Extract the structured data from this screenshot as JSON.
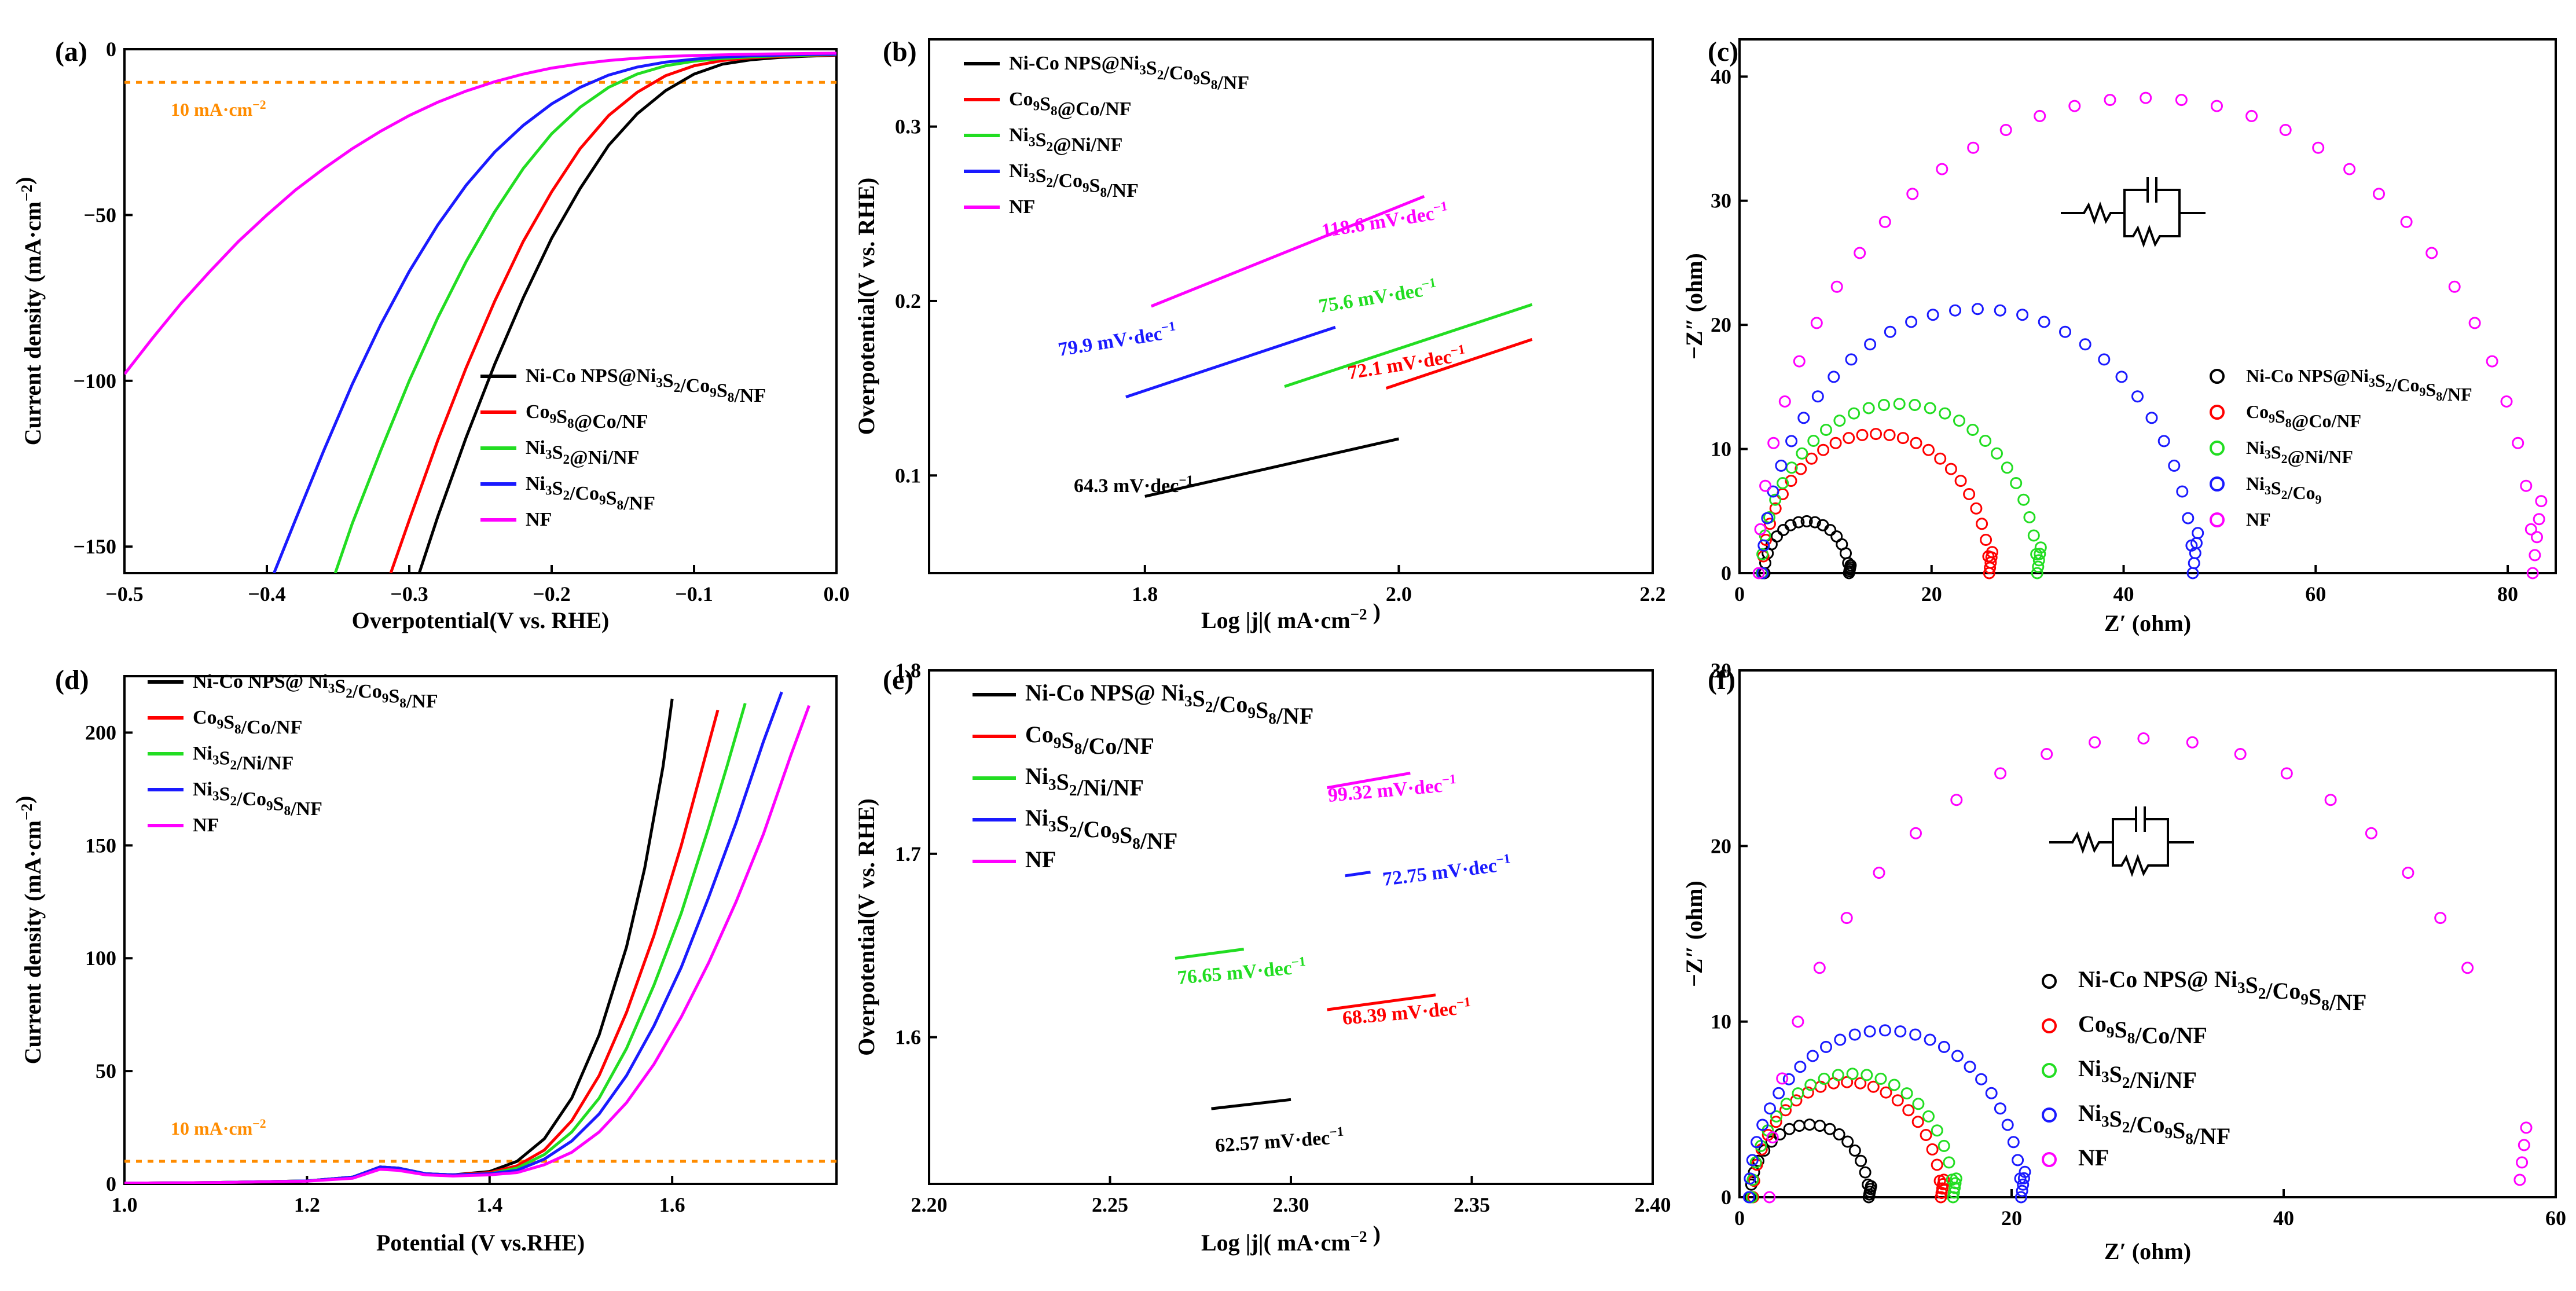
{
  "figure": {
    "description_visible": false
  },
  "colors": {
    "black": "#000000",
    "red": "#ff0000",
    "green": "#22dd22",
    "blue": "#1a1aff",
    "magenta": "#ff00ff",
    "orange": "#ff8c00"
  },
  "chart_data": [
    {
      "id": "a",
      "panel_label": "(a)",
      "type": "line",
      "xlabel": "Overpotential(V vs. RHE)",
      "ylabel": "Current density (mA·cm⁻²)",
      "xlim": [
        -0.5,
        0.0
      ],
      "ylim": [
        -158,
        0
      ],
      "xticks": [
        -0.5,
        -0.4,
        -0.3,
        -0.2,
        -0.1,
        0.0
      ],
      "xtick_labels": [
        "−0.5",
        "−0.4",
        "−0.3",
        "−0.2",
        "−0.1",
        "0.0"
      ],
      "yticks": [
        0,
        -50,
        -100,
        -150
      ],
      "ytick_labels": [
        "0",
        "−50",
        "−100",
        "−150"
      ],
      "reference_line": {
        "y": -10,
        "label": "10 mA·cm⁻²"
      },
      "legend": [
        "Ni-Co NPS@Ni₃S₂/Co₉S₈/NF",
        "Co₉S₈@Co/NF",
        "Ni₃S₂@Ni/NF",
        "Ni₃S₂/Co₉S₈/NF",
        "NF"
      ],
      "series": [
        {
          "name": "Ni-Co NPS@Ni3S2/Co9S8/NF",
          "color": "black",
          "x": [
            -0.293,
            -0.28,
            -0.26,
            -0.24,
            -0.22,
            -0.2,
            -0.18,
            -0.16,
            -0.14,
            -0.12,
            -0.1,
            -0.08,
            -0.06,
            -0.04,
            -0.02,
            0.0
          ],
          "y": [
            -158,
            -141,
            -117,
            -95,
            -75,
            -57,
            -42,
            -29,
            -19.5,
            -12.5,
            -7.5,
            -4.5,
            -3.2,
            -2.5,
            -2.1,
            -1.8
          ]
        },
        {
          "name": "Co9S8@Co/NF",
          "color": "red",
          "x": [
            -0.313,
            -0.3,
            -0.28,
            -0.26,
            -0.24,
            -0.22,
            -0.2,
            -0.18,
            -0.16,
            -0.14,
            -0.12,
            -0.1,
            -0.08,
            -0.06,
            -0.04,
            -0.02,
            0.0
          ],
          "y": [
            -158,
            -142,
            -118,
            -96,
            -76,
            -58,
            -43,
            -30,
            -20,
            -13,
            -8,
            -5,
            -3.4,
            -2.6,
            -2.2,
            -1.9,
            -1.7
          ]
        },
        {
          "name": "Ni3S2@Ni/NF",
          "color": "green",
          "x": [
            -0.352,
            -0.34,
            -0.32,
            -0.3,
            -0.28,
            -0.26,
            -0.24,
            -0.22,
            -0.2,
            -0.18,
            -0.16,
            -0.14,
            -0.12,
            -0.1,
            -0.08,
            -0.06,
            -0.04,
            -0.02,
            0.0
          ],
          "y": [
            -158,
            -143,
            -121,
            -100,
            -81,
            -64,
            -49,
            -36,
            -25.5,
            -17.5,
            -11.5,
            -7.5,
            -5,
            -3.6,
            -2.8,
            -2.3,
            -2.0,
            -1.8,
            -1.6
          ]
        },
        {
          "name": "Ni3S2/Co9S8/NF",
          "color": "blue",
          "x": [
            -0.395,
            -0.38,
            -0.36,
            -0.34,
            -0.32,
            -0.3,
            -0.28,
            -0.26,
            -0.24,
            -0.22,
            -0.2,
            -0.18,
            -0.16,
            -0.14,
            -0.12,
            -0.1,
            -0.08,
            -0.06,
            -0.04,
            -0.02,
            0.0
          ],
          "y": [
            -158,
            -142,
            -121,
            -101,
            -83,
            -67,
            -53,
            -41,
            -31,
            -23,
            -16.5,
            -11.5,
            -7.8,
            -5.4,
            -3.9,
            -3.0,
            -2.4,
            -2.0,
            -1.8,
            -1.6,
            -1.5
          ]
        },
        {
          "name": "NF",
          "color": "magenta",
          "x": [
            -0.5,
            -0.48,
            -0.46,
            -0.44,
            -0.42,
            -0.4,
            -0.38,
            -0.36,
            -0.34,
            -0.32,
            -0.3,
            -0.28,
            -0.26,
            -0.24,
            -0.22,
            -0.2,
            -0.18,
            -0.16,
            -0.14,
            -0.12,
            -0.1,
            -0.08,
            -0.06,
            -0.04,
            -0.02,
            0.0
          ],
          "y": [
            -98,
            -87,
            -76.5,
            -67,
            -58,
            -50,
            -42.5,
            -36,
            -30,
            -24.7,
            -20,
            -16,
            -12.6,
            -9.8,
            -7.5,
            -5.7,
            -4.4,
            -3.4,
            -2.7,
            -2.2,
            -1.9,
            -1.7,
            -1.5,
            -1.4,
            -1.3,
            -1.2
          ]
        }
      ]
    },
    {
      "id": "b",
      "panel_label": "(b)",
      "type": "line",
      "xlabel": "Log |j|( mA·cm⁻² )",
      "ylabel": "Overpotential(V vs. RHE)",
      "xlim": [
        1.63,
        2.2
      ],
      "ylim": [
        0.044,
        0.35
      ],
      "xticks": [
        1.8,
        2.0,
        2.2
      ],
      "xtick_labels": [
        "1.8",
        "2.0",
        "2.2"
      ],
      "yticks": [
        0.1,
        0.2,
        0.3
      ],
      "ytick_labels": [
        "0.1",
        "0.2",
        "0.3"
      ],
      "legend": [
        "Ni-Co NPS@Ni₃S₂/Co₉S₈/NF",
        "Co₉S₈@Co/NF",
        "Ni₃S₂@Ni/NF",
        "Ni₃S₂/Co₉S₈/NF",
        "NF"
      ],
      "series": [
        {
          "name": "Ni-Co NPS@Ni3S2/Co9S8/NF",
          "color": "black",
          "x": [
            1.8,
            2.0
          ],
          "y": [
            0.088,
            0.121
          ],
          "tafel": "64.3 mV·dec⁻¹"
        },
        {
          "name": "Co9S8@Co/NF",
          "color": "red",
          "x": [
            1.99,
            2.105
          ],
          "y": [
            0.15,
            0.178
          ],
          "tafel": "72.1 mV·dec⁻¹"
        },
        {
          "name": "Ni3S2@Ni/NF",
          "color": "green",
          "x": [
            1.91,
            2.105
          ],
          "y": [
            0.151,
            0.198
          ],
          "tafel": "75.6 mV·dec⁻¹"
        },
        {
          "name": "Ni3S2/Co9S8/NF",
          "color": "blue",
          "x": [
            1.785,
            1.95
          ],
          "y": [
            0.145,
            0.185
          ],
          "tafel": "79.9 mV·dec⁻¹"
        },
        {
          "name": "NF",
          "color": "magenta",
          "x": [
            1.805,
            2.02
          ],
          "y": [
            0.197,
            0.26
          ],
          "tafel": "118.6 mV·dec⁻¹"
        }
      ]
    },
    {
      "id": "c",
      "panel_label": "(c)",
      "type": "scatter",
      "xlabel": "Z′ (ohm)",
      "ylabel": "−Z″ (ohm)",
      "xlim": [
        0,
        85
      ],
      "ylim": [
        0,
        43
      ],
      "xticks": [
        0,
        20,
        40,
        60,
        80
      ],
      "xtick_labels": [
        "0",
        "20",
        "40",
        "60",
        "80"
      ],
      "yticks": [
        0,
        10,
        20,
        30,
        40
      ],
      "ytick_labels": [
        "0",
        "10",
        "20",
        "30",
        "40"
      ],
      "legend": [
        "Ni-Co NPS@Ni₃S₂/Co₉S₈/NF",
        "Co₉S₈@Co/NF",
        "Ni₃S₂@Ni/NF",
        "Ni₃S₂/Co₉",
        "NF"
      ],
      "series": [
        {
          "name": "Ni-Co NPS@Ni3S2/Co9S8/NF",
          "color": "black",
          "rs": 2.6,
          "diameter": 8.8,
          "points": 16
        },
        {
          "name": "Co9S8@Co/NF",
          "color": "red",
          "rs": 2.4,
          "diameter": 23.6,
          "points": 26
        },
        {
          "name": "Ni3S2@Ni/NF",
          "color": "green",
          "rs": 2.3,
          "diameter": 28.7,
          "points": 28
        },
        {
          "name": "Ni3S2/Co9",
          "color": "blue",
          "rs": 2.4,
          "diameter": 44.8,
          "points": 30
        },
        {
          "name": "NF",
          "color": "magenta",
          "rs": 2.0,
          "diameter": 80.6,
          "points": 34
        }
      ]
    },
    {
      "id": "d",
      "panel_label": "(d)",
      "type": "line",
      "xlabel": "Potential (V vs.RHE)",
      "ylabel": "Current density (mA·cm⁻²)",
      "xlim": [
        1.0,
        1.78
      ],
      "ylim": [
        0,
        225
      ],
      "xticks": [
        1.0,
        1.2,
        1.4,
        1.6
      ],
      "xtick_labels": [
        "1.0",
        "1.2",
        "1.4",
        "1.6"
      ],
      "yticks": [
        0,
        50,
        100,
        150,
        200
      ],
      "ytick_labels": [
        "0",
        "50",
        "100",
        "150",
        "200"
      ],
      "reference_line": {
        "y": 10,
        "label": "10 mA·cm⁻²"
      },
      "legend": [
        "Ni-Co NPS@ Ni₃S₂/Co₉S₈/NF",
        "Co₉S₈/Co/NF",
        "Ni₃S₂/Ni/NF",
        "Ni₃S₂/Co₉S₈/NF",
        "NF"
      ],
      "series": [
        {
          "name": "Ni-Co NPS@ Ni3S2/Co9S8/NF",
          "color": "black",
          "x": [
            1.0,
            1.1,
            1.2,
            1.25,
            1.28,
            1.3,
            1.33,
            1.36,
            1.4,
            1.43,
            1.46,
            1.49,
            1.52,
            1.55,
            1.57,
            1.59,
            1.6
          ],
          "y": [
            0.3,
            0.6,
            1.3,
            3,
            7.5,
            7,
            4.5,
            4,
            5.5,
            10,
            20,
            38,
            66,
            105,
            140,
            185,
            215
          ]
        },
        {
          "name": "Co9S8/Co/NF",
          "color": "red",
          "x": [
            1.0,
            1.1,
            1.2,
            1.25,
            1.28,
            1.3,
            1.33,
            1.36,
            1.4,
            1.43,
            1.46,
            1.49,
            1.52,
            1.55,
            1.58,
            1.61,
            1.63,
            1.65
          ],
          "y": [
            0.3,
            0.6,
            1.3,
            3,
            7.5,
            7,
            4.5,
            4,
            5,
            8,
            15,
            28,
            48,
            76,
            110,
            150,
            180,
            210
          ]
        },
        {
          "name": "Ni3S2/Ni/NF",
          "color": "green",
          "x": [
            1.0,
            1.1,
            1.2,
            1.25,
            1.28,
            1.3,
            1.33,
            1.36,
            1.4,
            1.43,
            1.46,
            1.49,
            1.52,
            1.55,
            1.58,
            1.61,
            1.64,
            1.66,
            1.68
          ],
          "y": [
            0.3,
            0.6,
            1.3,
            3,
            7.5,
            7,
            4.5,
            4,
            4.5,
            7,
            13,
            23,
            38,
            60,
            88,
            120,
            158,
            185,
            213
          ]
        },
        {
          "name": "Ni3S2/Co9S8/NF",
          "color": "blue",
          "x": [
            1.0,
            1.1,
            1.2,
            1.25,
            1.28,
            1.3,
            1.33,
            1.36,
            1.4,
            1.43,
            1.46,
            1.49,
            1.52,
            1.55,
            1.58,
            1.61,
            1.64,
            1.67,
            1.7,
            1.72
          ],
          "y": [
            0.3,
            0.6,
            1.3,
            3,
            7.5,
            7,
            4.5,
            4,
            4.5,
            6,
            11,
            19,
            31,
            48,
            70,
            96,
            127,
            160,
            196,
            218
          ]
        },
        {
          "name": "NF",
          "color": "magenta",
          "x": [
            1.0,
            1.1,
            1.2,
            1.25,
            1.28,
            1.3,
            1.33,
            1.36,
            1.4,
            1.43,
            1.46,
            1.49,
            1.52,
            1.55,
            1.58,
            1.61,
            1.64,
            1.67,
            1.7,
            1.73,
            1.75
          ],
          "y": [
            0.3,
            0.6,
            1.2,
            2.5,
            6.5,
            6,
            4,
            3.5,
            4,
            5,
            8.5,
            14,
            23,
            36,
            53,
            74,
            98,
            125,
            155,
            190,
            212
          ]
        }
      ]
    },
    {
      "id": "e",
      "panel_label": "(e)",
      "type": "line",
      "xlabel": "Log |j|( mA·cm⁻² )",
      "ylabel": "Overpotential(V vs. RHE)",
      "xlim": [
        2.2,
        2.4
      ],
      "ylim": [
        1.52,
        1.8
      ],
      "xticks": [
        2.2,
        2.25,
        2.3,
        2.35,
        2.4
      ],
      "xtick_labels": [
        "2.20",
        "2.25",
        "2.30",
        "2.35",
        "2.40"
      ],
      "yticks": [
        1.6,
        1.7,
        1.8
      ],
      "ytick_labels": [
        "1.6",
        "1.7",
        "1.8"
      ],
      "legend": [
        "Ni-Co NPS@ Ni₃S₂/Co₉S₈/NF",
        "Co₉S₈/Co/NF",
        "Ni₃S₂/Ni/NF",
        "Ni₃S₂/Co₉S₈/NF",
        "NF"
      ],
      "series": [
        {
          "name": "Ni-Co NPS@ Ni3S2/Co9S8/NF",
          "color": "black",
          "x": [
            2.278,
            2.3
          ],
          "y": [
            1.561,
            1.566
          ],
          "tafel": "62.57 mV·dec⁻¹"
        },
        {
          "name": "Co9S8/Co/NF",
          "color": "red",
          "x": [
            2.31,
            2.34
          ],
          "y": [
            1.615,
            1.623
          ],
          "tafel": "68.39 mV·dec⁻¹"
        },
        {
          "name": "Ni3S2/Ni/NF",
          "color": "green",
          "x": [
            2.268,
            2.287
          ],
          "y": [
            1.643,
            1.648
          ],
          "tafel": "76.65 mV·dec⁻¹"
        },
        {
          "name": "Ni3S2/Co9S8/NF",
          "color": "blue",
          "x": [
            2.315,
            2.322
          ],
          "y": [
            1.688,
            1.69
          ],
          "tafel": "72.75 mV·dec⁻¹"
        },
        {
          "name": "NF",
          "color": "magenta",
          "x": [
            2.31,
            2.333
          ],
          "y": [
            1.736,
            1.744
          ],
          "tafel": "99.32 mV·dec⁻¹"
        }
      ]
    },
    {
      "id": "f",
      "panel_label": "(f)",
      "type": "scatter",
      "xlabel": "Z′ (ohm)",
      "ylabel": "−Z″ (ohm)",
      "xlim": [
        0,
        60
      ],
      "ylim": [
        0,
        30
      ],
      "xticks": [
        0,
        20,
        40,
        60
      ],
      "xtick_labels": [
        "0",
        "20",
        "40",
        "60"
      ],
      "yticks": [
        0,
        10,
        20,
        30
      ],
      "ytick_labels": [
        "0",
        "10",
        "20",
        "30"
      ],
      "legend": [
        "Ni-Co NPS@ Ni₃S₂/Co₉S₈/NF",
        "Co₉S₈/Co/NF",
        "Ni₃S₂/Ni/NF",
        "Ni₃S₂/Co₉S₈/NF",
        "NF"
      ],
      "series": [
        {
          "name": "Ni-Co NPS@ Ni3S2/Co9S8/NF",
          "color": "black",
          "rs": 0.8,
          "diameter": 8.7,
          "points": 18
        },
        {
          "name": "Co9S8/Co/NF",
          "color": "red",
          "rs": 1.0,
          "diameter": 13.8,
          "points": 22
        },
        {
          "name": "Ni3S2/Ni/NF",
          "color": "green",
          "rs": 0.9,
          "diameter": 14.8,
          "points": 22
        },
        {
          "name": "Ni3S2/Co9S8/NF",
          "color": "blue",
          "rs": 0.7,
          "diameter": 20.0,
          "points": 28
        },
        {
          "name": "NF",
          "color": "magenta",
          "rs": 2.2,
          "diameter": 55,
          "points": 20,
          "arc_end_deg": 150
        }
      ]
    }
  ]
}
